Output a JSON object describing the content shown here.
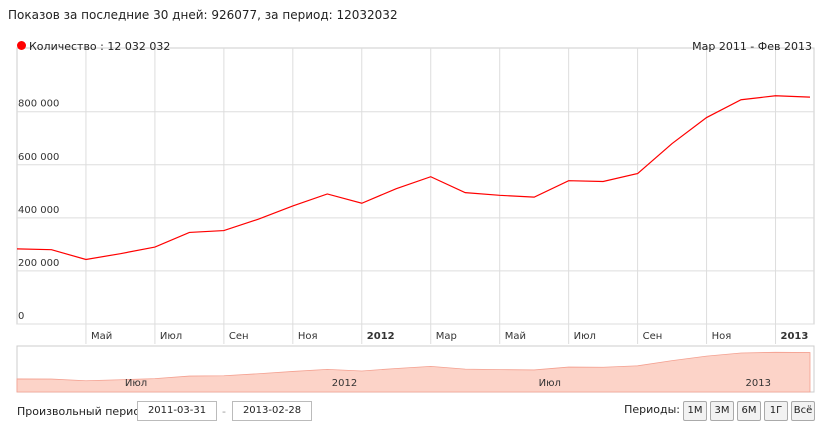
{
  "header": {
    "title": "Показов за последние 30 дней: 926077, за период: 12032032"
  },
  "chart_data": {
    "type": "line",
    "subtitle": "Мар 2011 - Фев 2013",
    "categories": [
      null,
      null,
      "Май",
      null,
      "Июл",
      null,
      "Сен",
      null,
      "Ноя",
      null,
      "2012",
      null,
      "Мар",
      null,
      "Май",
      null,
      "Июл",
      null,
      "Сен",
      null,
      "Ноя",
      null,
      "2013",
      null
    ],
    "series": [
      {
        "name": "Количество : 12 032 032",
        "color": "#ff0000",
        "values": [
          283000,
          280000,
          243000,
          265000,
          290000,
          345000,
          352000,
          395000,
          445000,
          490000,
          455000,
          510000,
          555000,
          495000,
          485000,
          478000,
          540000,
          537000,
          567000,
          680000,
          778000,
          845000,
          860000,
          855000
        ]
      }
    ],
    "ylim": [
      0,
      1040000
    ],
    "yticks": [
      0,
      {
        "value": 200000,
        "label": "200 000"
      },
      {
        "value": 400000,
        "label": "400 000"
      },
      {
        "value": 600000,
        "label": "600 000"
      },
      {
        "value": 800000,
        "label": "800 000"
      }
    ],
    "grid": true,
    "navigator": {
      "color": "#fcd3c8",
      "categories": [
        null,
        null,
        null,
        null,
        "Июл",
        null,
        null,
        null,
        null,
        null,
        "2012",
        null,
        null,
        null,
        null,
        null,
        "Июл",
        null,
        null,
        null,
        null,
        null,
        "2013",
        null
      ]
    }
  },
  "controls": {
    "custom_label": "Произвольный период:",
    "from": "2011-03-31",
    "dash": "-",
    "to": "2013-02-28",
    "periods_label": "Периоды:",
    "periods": [
      "1М",
      "3М",
      "6М",
      "1Г",
      "Всё"
    ]
  }
}
